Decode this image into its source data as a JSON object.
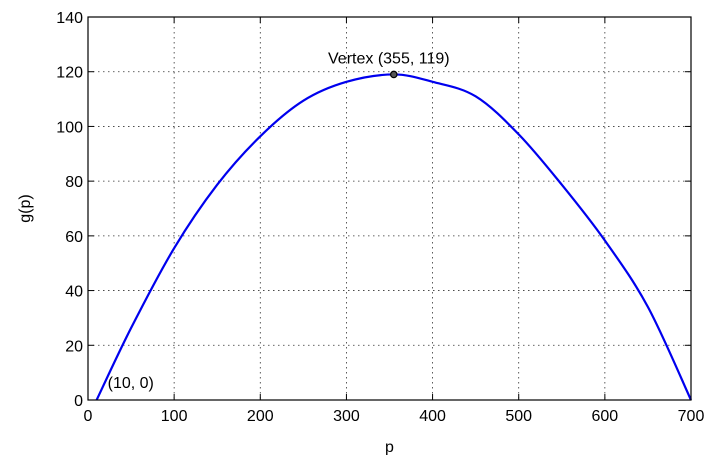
{
  "chart_data": {
    "type": "line",
    "title": "",
    "xlabel": "p",
    "ylabel": "g(p)",
    "xlim": [
      0,
      700
    ],
    "ylim": [
      0,
      140
    ],
    "xticks": [
      0,
      100,
      200,
      300,
      400,
      500,
      600,
      700
    ],
    "yticks": [
      0,
      20,
      40,
      60,
      80,
      100,
      120,
      140
    ],
    "grid": true,
    "series": [
      {
        "color": "#0000ee",
        "x": [
          10,
          50,
          100,
          150,
          200,
          250,
          300,
          355,
          400,
          450,
          500,
          550,
          600,
          650,
          700
        ],
        "y": [
          0,
          26.3,
          55.5,
          78.7,
          96.4,
          109.4,
          116.3,
          119,
          116.3,
          111.0,
          97.1,
          78.7,
          58.3,
          34.0,
          0
        ]
      }
    ],
    "points": [
      {
        "x": 355,
        "y": 119,
        "label": "Vertex (355, 119)"
      },
      {
        "x": 10,
        "y": 0,
        "label": "(10, 0)"
      }
    ]
  }
}
